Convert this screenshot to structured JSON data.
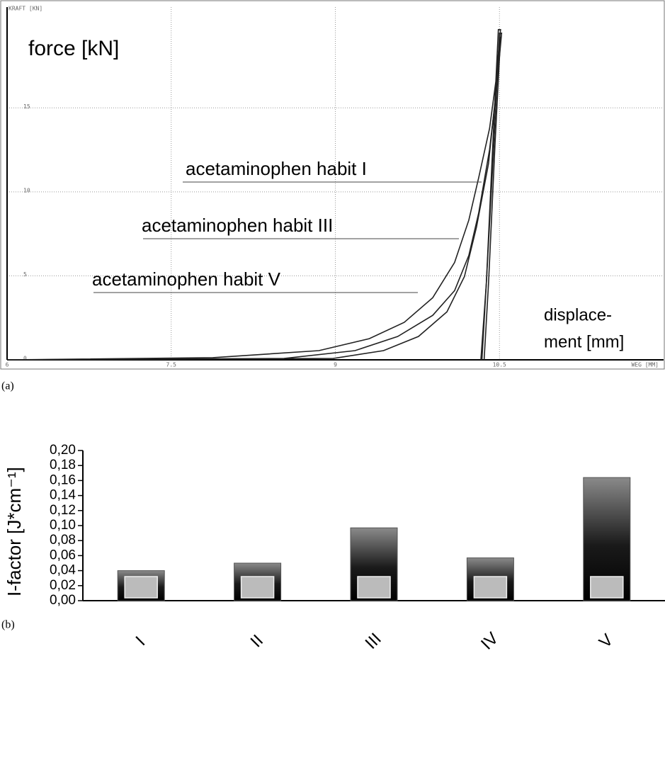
{
  "chart_data": [
    {
      "type": "line",
      "panel_label": "(a)",
      "title": "force [kN]",
      "y_unit": "KRAFT [KN]",
      "x_unit": "WEG [MM]",
      "xlabel": [
        "displace-",
        "ment [mm]"
      ],
      "xlim": [
        6,
        12
      ],
      "ylim": [
        0,
        21
      ],
      "xticks": [
        6,
        7.5,
        9,
        10.5
      ],
      "yticks": [
        0,
        5,
        10,
        15
      ],
      "grid": true,
      "series": [
        {
          "name": "acetaminophen habit I",
          "color": "#222222",
          "x": [
            6,
            7.88,
            8.85,
            9.31,
            9.63,
            9.89,
            10.09,
            10.22,
            10.31,
            10.41,
            10.47,
            10.51,
            10.49,
            10.44,
            10.38,
            10.33
          ],
          "values": [
            0,
            0.13,
            0.55,
            1.26,
            2.23,
            3.7,
            5.8,
            8.32,
            10.84,
            13.78,
            16.72,
            19.66,
            19.66,
            12.94,
            4.54,
            0
          ]
        },
        {
          "name": "acetaminophen habit III",
          "color": "#222222",
          "x": [
            6,
            8.53,
            9.18,
            9.57,
            9.89,
            10.09,
            10.22,
            10.31,
            10.41,
            10.47,
            10.52,
            10.5,
            10.45,
            10.38,
            10.34
          ],
          "values": [
            0,
            0.08,
            0.55,
            1.39,
            2.65,
            4.12,
            6.22,
            8.74,
            12.52,
            15.88,
            19.45,
            19.45,
            12.94,
            4.54,
            0
          ]
        },
        {
          "name": "acetaminophen habit V",
          "color": "#222222",
          "x": [
            6,
            8.98,
            9.44,
            9.76,
            10.02,
            10.18,
            10.29,
            10.4,
            10.46,
            10.51,
            10.51,
            10.46,
            10.4,
            10.36
          ],
          "values": [
            0,
            0.08,
            0.55,
            1.39,
            2.86,
            4.96,
            7.9,
            11.68,
            15.46,
            19.24,
            19.24,
            12.94,
            4.54,
            0
          ]
        }
      ]
    },
    {
      "type": "bar",
      "panel_label": "(b)",
      "ylabel": "I-factor [J*cm⁻¹]",
      "categories": [
        "I",
        "II",
        "III",
        "IV",
        "V"
      ],
      "values": [
        0.04,
        0.05,
        0.097,
        0.057,
        0.164
      ],
      "ylim": [
        0,
        0.2
      ],
      "yticks": [
        {
          "value": 0,
          "label": "0,00"
        },
        {
          "value": 0.02,
          "label": "0,02"
        },
        {
          "value": 0.04,
          "label": "0,04"
        },
        {
          "value": 0.06,
          "label": "0,06"
        },
        {
          "value": 0.08,
          "label": "0,08"
        },
        {
          "value": 0.1,
          "label": "0,10"
        },
        {
          "value": 0.12,
          "label": "0,12"
        },
        {
          "value": 0.14,
          "label": "0,14"
        },
        {
          "value": 0.16,
          "label": "0,16"
        },
        {
          "value": 0.18,
          "label": "0,18"
        },
        {
          "value": 0.2,
          "label": "0,20"
        }
      ]
    }
  ]
}
